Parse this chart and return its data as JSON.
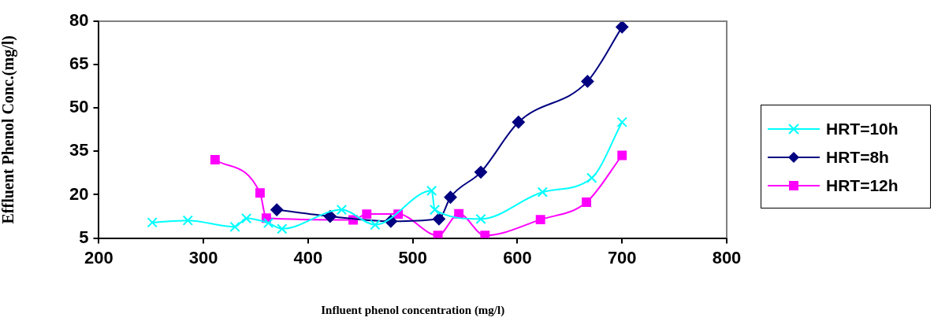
{
  "chart_data": {
    "type": "line",
    "xlabel": "Influent phenol concentration (mg/l)",
    "ylabel": "Effluent Phenol Conc.(mg/l)",
    "xlim": [
      200,
      800
    ],
    "xticks": [
      200,
      300,
      400,
      500,
      600,
      700,
      800
    ],
    "ylim": [
      5,
      80
    ],
    "yticks": [
      5,
      20,
      35,
      50,
      65,
      80
    ],
    "grid": false,
    "legend": "right",
    "series": [
      {
        "name": "HRT=10h",
        "color": "#00ffff",
        "marker": "cross",
        "x": [
          251,
          285,
          330,
          341,
          362,
          375,
          432,
          464,
          518,
          521,
          565,
          624,
          671,
          700
        ],
        "values": [
          10.4,
          11.1,
          8.9,
          11.8,
          10.2,
          8.2,
          14.8,
          9.6,
          21.4,
          14.8,
          11.6,
          20.9,
          25.8,
          45.1
        ]
      },
      {
        "name": "HRT=8h",
        "color": "#000080",
        "marker": "diamond",
        "x": [
          370,
          421,
          479,
          525,
          536,
          565,
          601,
          667,
          700
        ],
        "values": [
          14.8,
          12.5,
          10.8,
          11.6,
          19.1,
          27.8,
          45.1,
          59.2,
          78
        ]
      },
      {
        "name": "HRT=12h",
        "color": "#ff00ff",
        "marker": "square",
        "x": [
          311,
          354,
          360,
          443,
          456,
          486,
          524,
          544,
          569,
          622,
          666,
          700
        ],
        "values": [
          32.1,
          20.6,
          11.9,
          11.3,
          13.3,
          13.3,
          5.9,
          13.4,
          5.9,
          11.4,
          17.4,
          33.6
        ]
      }
    ]
  }
}
